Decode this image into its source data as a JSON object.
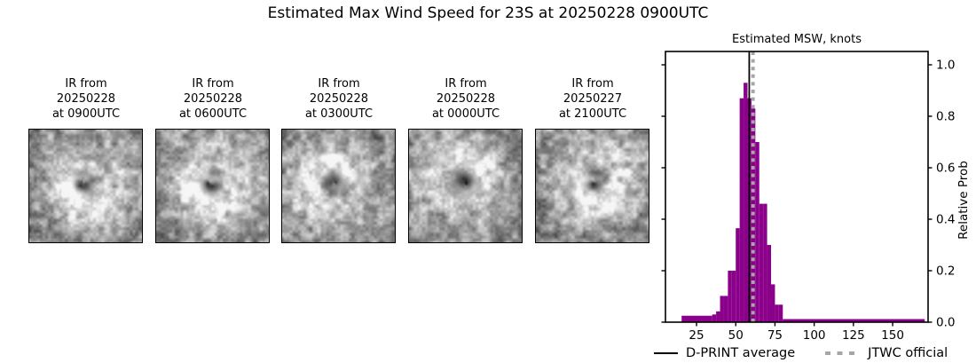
{
  "figure": {
    "title": "Estimated Max Wind Speed for 23S at 20250228 0900UTC"
  },
  "ir_panels": [
    {
      "caption_lines": [
        "IR from",
        "20250228",
        "at 0900UTC"
      ]
    },
    {
      "caption_lines": [
        "IR from",
        "20250228",
        "at 0600UTC"
      ]
    },
    {
      "caption_lines": [
        "IR from",
        "20250228",
        "at 0300UTC"
      ]
    },
    {
      "caption_lines": [
        "IR from",
        "20250228",
        "at 0000UTC"
      ]
    },
    {
      "caption_lines": [
        "IR from",
        "20250227",
        "at 2100UTC"
      ]
    }
  ],
  "chart_data": {
    "type": "bar",
    "title": "Estimated MSW, knots",
    "xlabel": "",
    "ylabel": "Relative Prob",
    "xlim": [
      5.2,
      172.6
    ],
    "ylim": [
      0,
      1.05
    ],
    "xticks": [
      25,
      50,
      75,
      100,
      125,
      150
    ],
    "yticks": [
      0.0,
      0.2,
      0.4,
      0.6,
      0.8,
      1.0
    ],
    "grid": false,
    "ytick_label_side": "right",
    "bar_color": "#8b008b",
    "bins_note": "each bin is [x0_knots, x1_knots, relative_prob]",
    "bins": [
      [
        15.5,
        35,
        0.025
      ],
      [
        35,
        37.5,
        0.03
      ],
      [
        37.5,
        40,
        0.042
      ],
      [
        40,
        42.5,
        0.102
      ],
      [
        42.5,
        45,
        0.102
      ],
      [
        45,
        47.5,
        0.2
      ],
      [
        47.5,
        50,
        0.2
      ],
      [
        50,
        52.5,
        0.365
      ],
      [
        52.5,
        55,
        0.87
      ],
      [
        55,
        57.5,
        0.93
      ],
      [
        57.5,
        60,
        0.87
      ],
      [
        60,
        62.5,
        0.83
      ],
      [
        62.5,
        65,
        0.7
      ],
      [
        65,
        67.5,
        0.46
      ],
      [
        67.5,
        70,
        0.46
      ],
      [
        70,
        72.5,
        0.3
      ],
      [
        72.5,
        75,
        0.147
      ],
      [
        75,
        77.5,
        0.068
      ],
      [
        77.5,
        80,
        0.068
      ],
      [
        80,
        170.5,
        0.012
      ]
    ],
    "vlines": [
      {
        "label": "D-PRINT average",
        "x": 58.6,
        "style": "solid",
        "color": "#000000",
        "width": 1.8
      },
      {
        "label": "JTWC official",
        "x": 61.0,
        "style": "dashed",
        "color": "#a6a6a6",
        "width": 4
      }
    ],
    "legend_position": "below-axes"
  }
}
